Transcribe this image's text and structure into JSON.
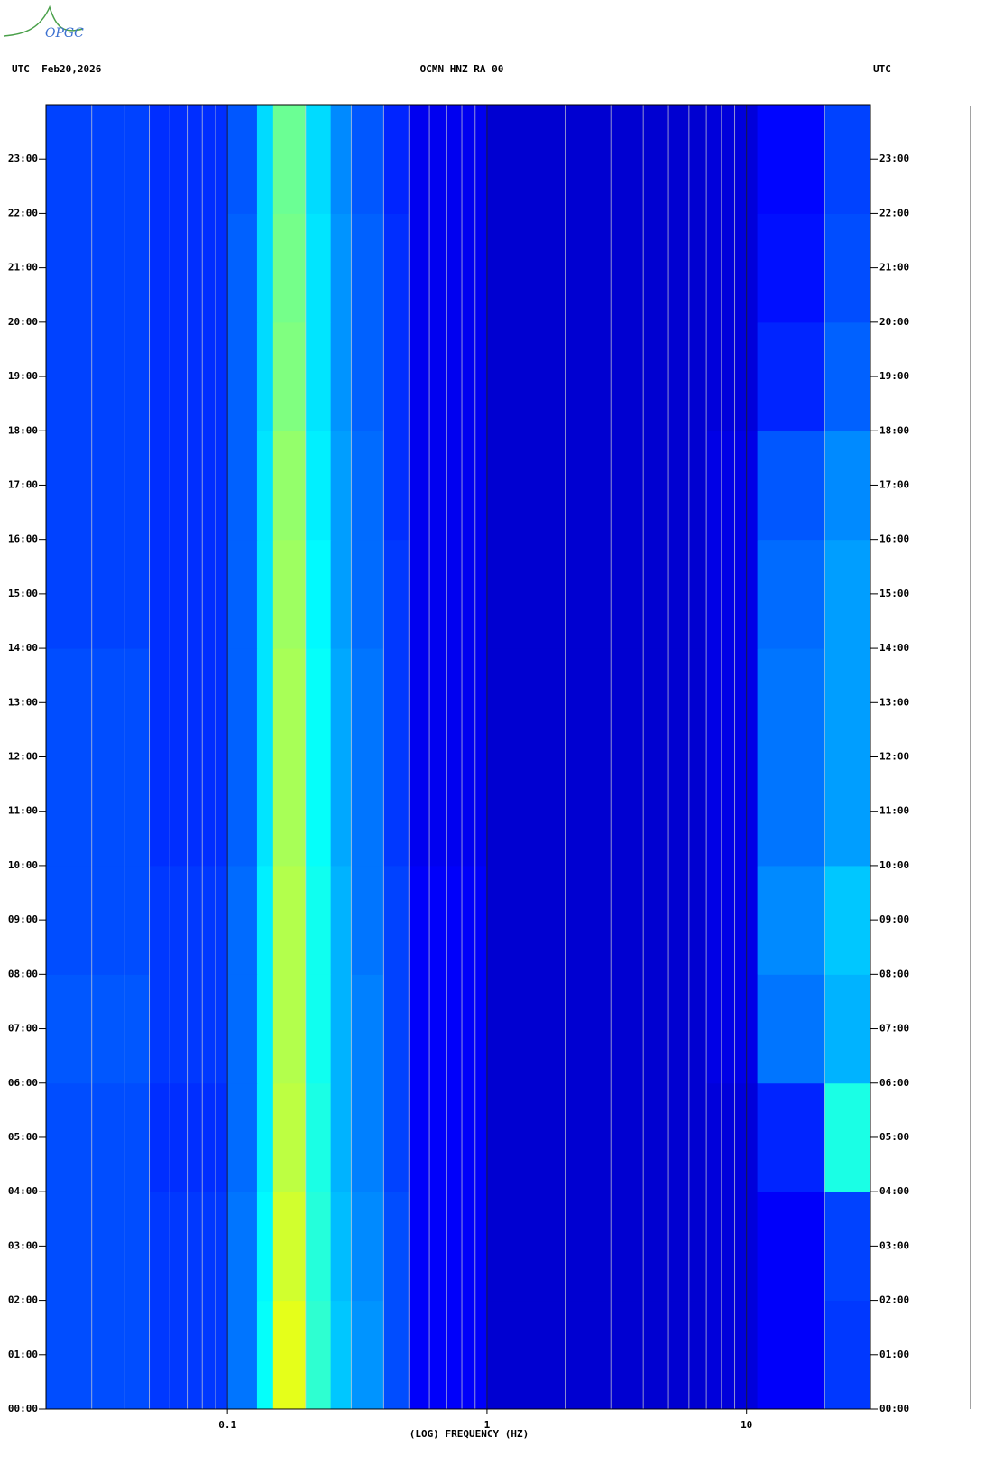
{
  "logo": "OPGC",
  "chart_data": {
    "type": "spectrogram",
    "header_left": "UTC  Feb20,2026",
    "title": "OCMN HNZ RA 00",
    "header_right": "UTC",
    "x_label": "(LOG) FREQUENCY (HZ)",
    "x_log": true,
    "xlim": [
      0.02,
      30
    ],
    "xticks": [
      {
        "value": 0.1,
        "label": "0.1"
      },
      1,
      10
    ],
    "xminorticks": [
      0.02,
      0.03,
      0.04,
      0.05,
      0.06,
      0.07,
      0.08,
      0.09,
      0.2,
      0.3,
      0.4,
      0.5,
      0.6,
      0.7,
      0.8,
      0.9,
      2,
      3,
      4,
      5,
      6,
      7,
      8,
      9,
      20,
      30
    ],
    "ylim": [
      0,
      24
    ],
    "yticks": [
      {
        "value": 0,
        "label": "00:00"
      },
      {
        "value": 1,
        "label": "01:00"
      },
      {
        "value": 2,
        "label": "02:00"
      },
      {
        "value": 3,
        "label": "03:00"
      },
      {
        "value": 4,
        "label": "04:00"
      },
      {
        "value": 5,
        "label": "05:00"
      },
      {
        "value": 6,
        "label": "06:00"
      },
      {
        "value": 7,
        "label": "07:00"
      },
      {
        "value": 8,
        "label": "08:00"
      },
      {
        "value": 9,
        "label": "09:00"
      },
      {
        "value": 10,
        "label": "10:00"
      },
      {
        "value": 11,
        "label": "11:00"
      },
      {
        "value": 12,
        "label": "12:00"
      },
      {
        "value": 13,
        "label": "13:00"
      },
      {
        "value": 14,
        "label": "14:00"
      },
      {
        "value": 15,
        "label": "15:00"
      },
      {
        "value": 16,
        "label": "16:00"
      },
      {
        "value": 17,
        "label": "17:00"
      },
      {
        "value": 18,
        "label": "18:00"
      },
      {
        "value": 19,
        "label": "19:00"
      },
      {
        "value": 20,
        "label": "20:00"
      },
      {
        "value": 21,
        "label": "21:00"
      },
      {
        "value": 22,
        "label": "22:00"
      },
      {
        "value": 23,
        "label": "23:00"
      }
    ],
    "freq_edges": [
      0.02,
      0.05,
      0.1,
      0.13,
      0.15,
      0.2,
      0.25,
      0.3,
      0.4,
      0.5,
      1,
      3,
      7,
      11,
      20,
      30
    ],
    "time_edges": [
      0,
      2,
      4,
      6,
      8,
      10,
      12,
      14,
      16,
      18,
      20,
      22,
      24
    ],
    "z": [
      [
        0.2,
        0.18,
        0.24,
        0.38,
        0.6,
        0.42,
        0.32,
        0.27,
        0.2,
        0.12,
        0.08,
        0.08,
        0.09,
        0.12,
        0.18
      ],
      [
        0.2,
        0.18,
        0.24,
        0.37,
        0.58,
        0.41,
        0.31,
        0.26,
        0.2,
        0.12,
        0.08,
        0.08,
        0.09,
        0.12,
        0.19
      ],
      [
        0.2,
        0.17,
        0.23,
        0.36,
        0.56,
        0.4,
        0.3,
        0.25,
        0.19,
        0.12,
        0.08,
        0.08,
        0.09,
        0.16,
        0.4
      ],
      [
        0.21,
        0.18,
        0.23,
        0.36,
        0.55,
        0.39,
        0.3,
        0.25,
        0.19,
        0.12,
        0.08,
        0.08,
        0.1,
        0.24,
        0.3
      ],
      [
        0.2,
        0.18,
        0.23,
        0.36,
        0.55,
        0.39,
        0.3,
        0.24,
        0.19,
        0.12,
        0.08,
        0.08,
        0.1,
        0.26,
        0.32
      ],
      [
        0.2,
        0.17,
        0.22,
        0.35,
        0.54,
        0.38,
        0.29,
        0.24,
        0.18,
        0.11,
        0.08,
        0.08,
        0.1,
        0.24,
        0.28
      ],
      [
        0.2,
        0.17,
        0.22,
        0.35,
        0.54,
        0.38,
        0.29,
        0.24,
        0.18,
        0.11,
        0.08,
        0.08,
        0.1,
        0.24,
        0.28
      ],
      [
        0.19,
        0.17,
        0.22,
        0.35,
        0.53,
        0.37,
        0.28,
        0.23,
        0.18,
        0.11,
        0.08,
        0.08,
        0.1,
        0.23,
        0.28
      ],
      [
        0.19,
        0.17,
        0.22,
        0.35,
        0.52,
        0.36,
        0.28,
        0.23,
        0.17,
        0.11,
        0.08,
        0.08,
        0.1,
        0.21,
        0.26
      ],
      [
        0.19,
        0.17,
        0.22,
        0.34,
        0.5,
        0.35,
        0.27,
        0.22,
        0.17,
        0.11,
        0.08,
        0.08,
        0.09,
        0.16,
        0.22
      ],
      [
        0.19,
        0.17,
        0.22,
        0.34,
        0.49,
        0.35,
        0.27,
        0.22,
        0.17,
        0.11,
        0.08,
        0.08,
        0.09,
        0.14,
        0.2
      ],
      [
        0.19,
        0.17,
        0.21,
        0.34,
        0.48,
        0.34,
        0.26,
        0.21,
        0.16,
        0.11,
        0.08,
        0.08,
        0.09,
        0.13,
        0.19
      ]
    ]
  }
}
